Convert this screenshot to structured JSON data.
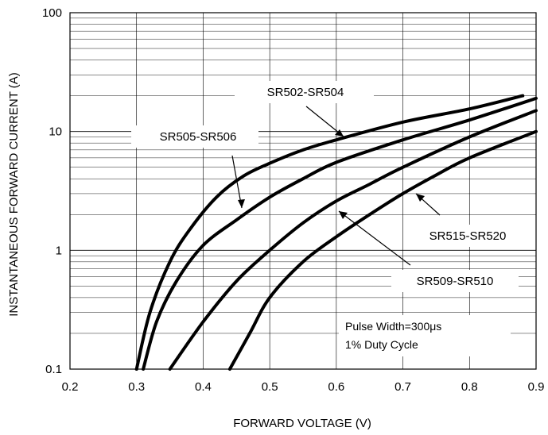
{
  "chart_data": {
    "type": "line",
    "xlabel": "FORWARD VOLTAGE (V)",
    "ylabel": "INSTANTANEOUS FORWARD CURRENT (A)",
    "xlim": [
      0.2,
      0.9
    ],
    "ylim": [
      0.1,
      100
    ],
    "yscale": "log",
    "grid": true,
    "xticks": [
      "0.2",
      "0.3",
      "0.4",
      "0.5",
      "0.6",
      "0.7",
      "0.8",
      "0.9"
    ],
    "yticks": [
      "0.1",
      "1",
      "10",
      "100"
    ],
    "series": [
      {
        "name": "SR502-SR504",
        "x": [
          0.3,
          0.32,
          0.35,
          0.38,
          0.42,
          0.46,
          0.5,
          0.55,
          0.6,
          0.7,
          0.8,
          0.88
        ],
        "y": [
          0.1,
          0.3,
          0.8,
          1.5,
          2.8,
          4.2,
          5.4,
          7.0,
          8.5,
          12.0,
          15.5,
          20.0
        ]
      },
      {
        "name": "SR505-SR506",
        "x": [
          0.31,
          0.33,
          0.36,
          0.4,
          0.45,
          0.5,
          0.55,
          0.6,
          0.7,
          0.8,
          0.9
        ],
        "y": [
          0.1,
          0.25,
          0.55,
          1.1,
          1.8,
          2.8,
          4.0,
          5.5,
          8.5,
          12.5,
          19.0
        ]
      },
      {
        "name": "SR509-SR510",
        "x": [
          0.35,
          0.4,
          0.45,
          0.5,
          0.55,
          0.6,
          0.65,
          0.7,
          0.8,
          0.9
        ],
        "y": [
          0.1,
          0.25,
          0.55,
          1.0,
          1.7,
          2.6,
          3.6,
          5.0,
          9.0,
          15.0
        ]
      },
      {
        "name": "SR515-SR520",
        "x": [
          0.44,
          0.47,
          0.5,
          0.55,
          0.6,
          0.65,
          0.7,
          0.75,
          0.8,
          0.9
        ],
        "y": [
          0.1,
          0.2,
          0.4,
          0.8,
          1.3,
          2.0,
          3.0,
          4.3,
          6.0,
          10.0
        ]
      }
    ],
    "annotations": {
      "sr502": "SR502-SR504",
      "sr505": "SR505-SR506",
      "sr515": "SR515-SR520",
      "sr509": "SR509-SR510",
      "note1": "Pulse Width=300μs",
      "note2": "1% Duty Cycle"
    }
  }
}
